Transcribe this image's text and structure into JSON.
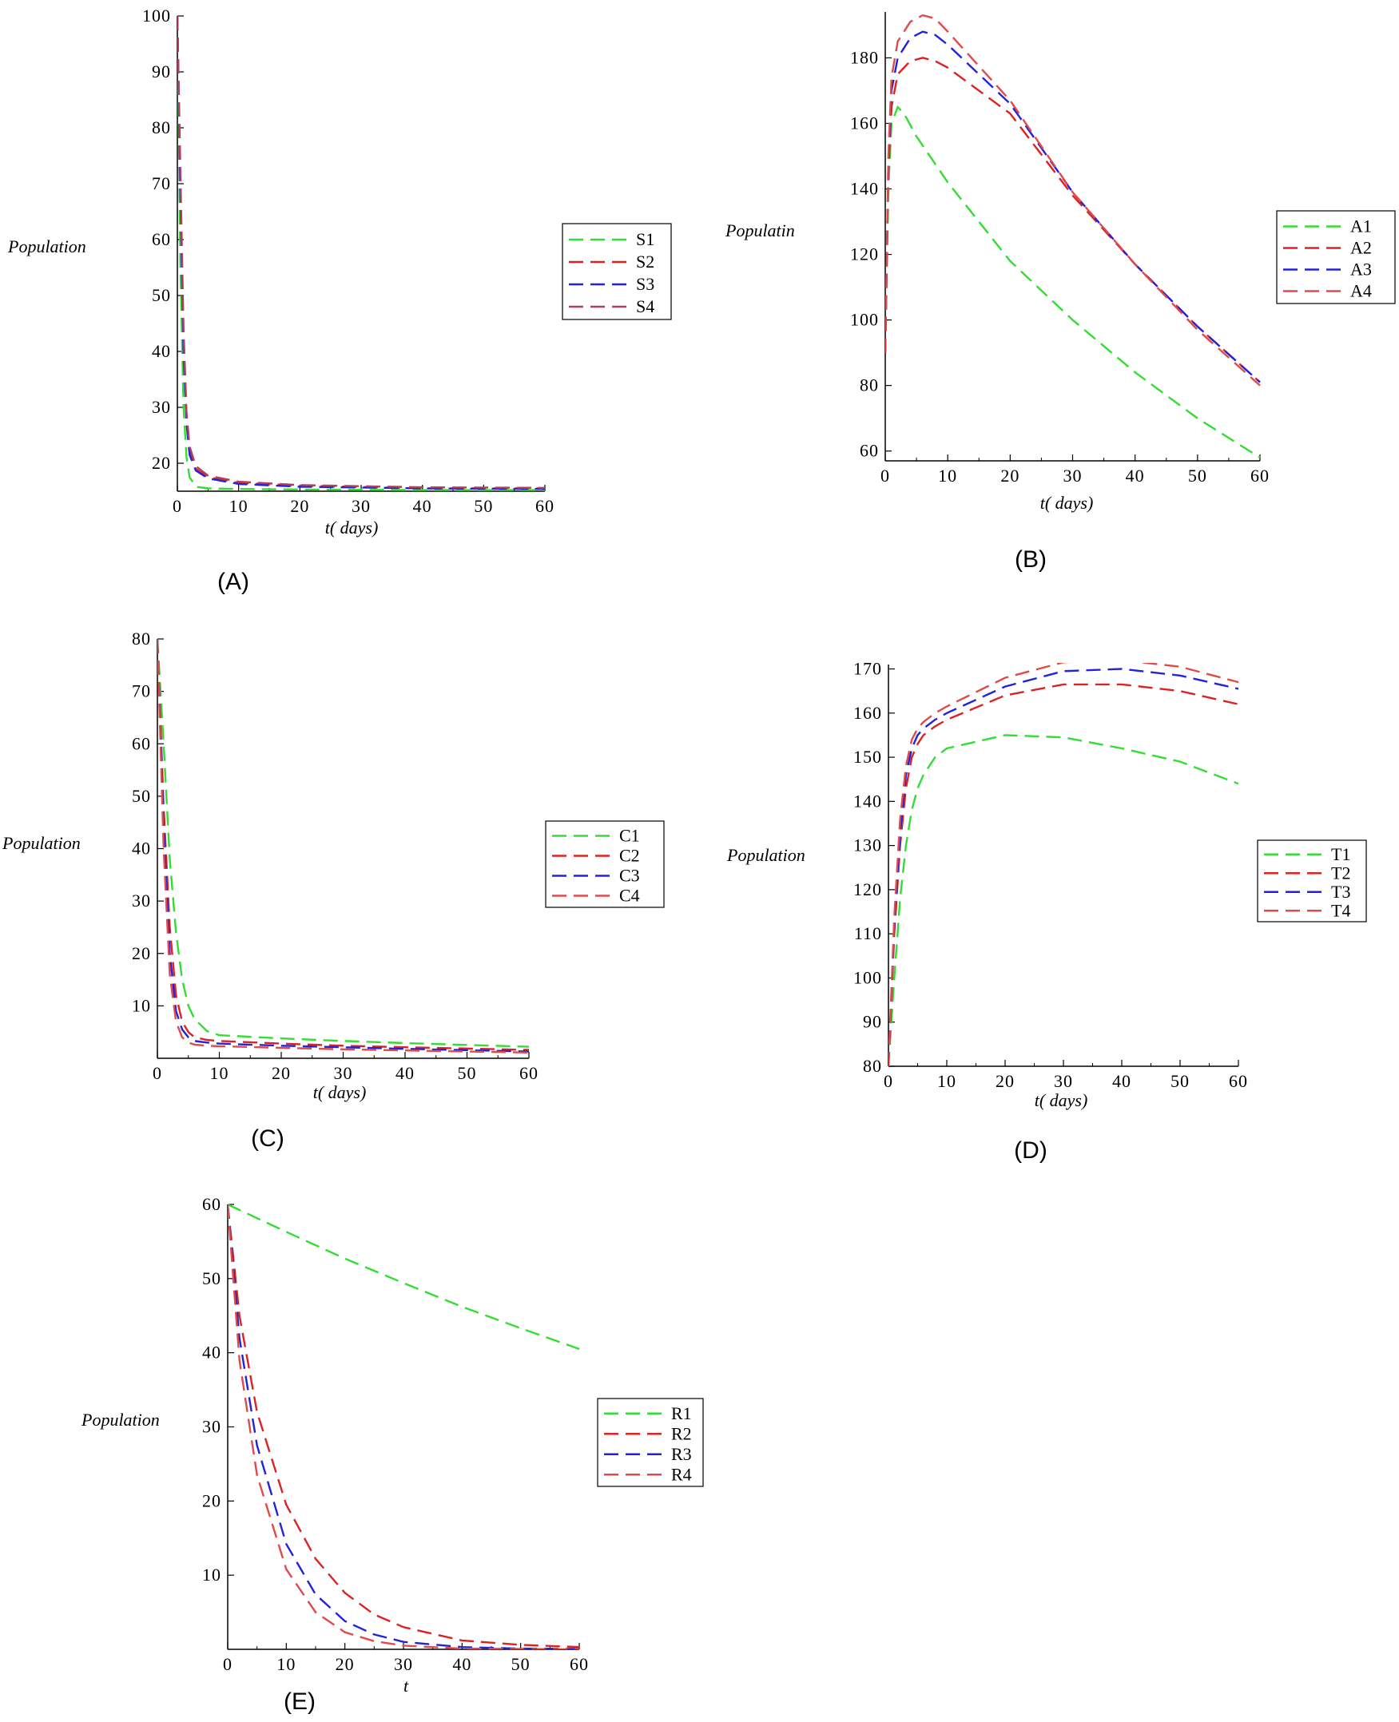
{
  "chart_data": [
    {
      "type": "line",
      "panel_label": "(A)",
      "xlabel": "t( days)",
      "ylabel": "Population",
      "xlim": [
        0,
        60
      ],
      "ylim": [
        15,
        100
      ],
      "x_ticks": [
        0,
        10,
        20,
        30,
        40,
        50,
        60
      ],
      "y_ticks": [
        20,
        30,
        40,
        50,
        60,
        70,
        80,
        90,
        100
      ],
      "legend": "right",
      "series": [
        {
          "name": "S1",
          "color": "#33dd33",
          "x": [
            0,
            0.5,
            1,
            1.5,
            2,
            3,
            5,
            10,
            20,
            40,
            60
          ],
          "y": [
            100,
            55,
            30,
            21,
            17.5,
            15.8,
            15.5,
            15.4,
            15.3,
            15.2,
            15.2
          ]
        },
        {
          "name": "S2",
          "color": "#dd2222",
          "x": [
            0,
            0.5,
            1,
            1.5,
            2,
            3,
            5,
            10,
            20,
            40,
            60
          ],
          "y": [
            100,
            70,
            42,
            28,
            22,
            19,
            17.5,
            16.5,
            16,
            15.5,
            15.5
          ]
        },
        {
          "name": "S3",
          "color": "#2222dd",
          "x": [
            0,
            0.5,
            1,
            1.5,
            2,
            3,
            5,
            10,
            20,
            40,
            60
          ],
          "y": [
            100,
            68,
            40,
            27,
            21.5,
            18.7,
            17.3,
            16.3,
            15.8,
            15.5,
            15.4
          ]
        },
        {
          "name": "S4",
          "color": "#b0405a",
          "x": [
            0,
            0.5,
            1,
            1.5,
            2,
            3,
            5,
            10,
            20,
            40,
            60
          ],
          "y": [
            100,
            72,
            44,
            29,
            23,
            19.5,
            17.8,
            16.7,
            16.1,
            15.7,
            15.6
          ]
        }
      ]
    },
    {
      "type": "line",
      "panel_label": "(B)",
      "xlabel": "t( days)",
      "ylabel": "Populatin",
      "xlim": [
        0,
        60
      ],
      "ylim": [
        57,
        194
      ],
      "x_ticks": [
        0,
        10,
        20,
        30,
        40,
        50,
        60
      ],
      "y_ticks": [
        60,
        80,
        100,
        120,
        140,
        160,
        180
      ],
      "legend": "right",
      "series": [
        {
          "name": "A1",
          "color": "#33dd33",
          "x": [
            0,
            0.5,
            1,
            2,
            3,
            5,
            10,
            20,
            30,
            40,
            50,
            60
          ],
          "y": [
            90,
            140,
            160,
            165,
            163,
            156,
            142,
            118,
            100,
            84,
            70,
            58
          ]
        },
        {
          "name": "A2",
          "color": "#dd2222",
          "x": [
            0,
            0.5,
            1,
            2,
            4,
            6,
            8,
            10,
            20,
            30,
            40,
            50,
            60
          ],
          "y": [
            90,
            145,
            165,
            175,
            179,
            180,
            179,
            177,
            163,
            138,
            117,
            98,
            81
          ]
        },
        {
          "name": "A3",
          "color": "#2222dd",
          "x": [
            0,
            0.5,
            1,
            2,
            4,
            6,
            8,
            10,
            20,
            30,
            40,
            50,
            60
          ],
          "y": [
            90,
            148,
            170,
            180,
            186,
            188,
            187,
            184,
            166,
            139,
            117,
            98,
            81
          ]
        },
        {
          "name": "A4",
          "color": "#e04a4a",
          "x": [
            0,
            0.5,
            1,
            2,
            4,
            6,
            8,
            10,
            20,
            30,
            40,
            50,
            60
          ],
          "y": [
            90,
            150,
            174,
            185,
            191,
            193,
            192,
            188,
            167,
            139,
            117,
            97,
            80
          ]
        }
      ]
    },
    {
      "type": "line",
      "panel_label": "(C)",
      "xlabel": "t( days)",
      "ylabel": "Population",
      "xlim": [
        0,
        60
      ],
      "ylim": [
        0,
        80
      ],
      "x_ticks": [
        0,
        10,
        20,
        30,
        40,
        50,
        60
      ],
      "y_ticks": [
        10,
        20,
        30,
        40,
        50,
        60,
        70,
        80
      ],
      "legend": "right",
      "series": [
        {
          "name": "C1",
          "color": "#33dd33",
          "x": [
            0,
            1,
            2,
            3,
            4,
            5,
            6,
            8,
            10,
            20,
            30,
            40,
            60
          ],
          "y": [
            80,
            60,
            38,
            24,
            15,
            10,
            7.5,
            5.2,
            4.4,
            3.8,
            3.3,
            2.9,
            2.2
          ]
        },
        {
          "name": "C2",
          "color": "#dd2222",
          "x": [
            0,
            1,
            2,
            3,
            4,
            5,
            6,
            8,
            10,
            20,
            30,
            40,
            60
          ],
          "y": [
            80,
            48,
            25,
            12,
            7,
            5,
            4,
            3.5,
            3.3,
            2.8,
            2.4,
            2.1,
            1.6
          ]
        },
        {
          "name": "C3",
          "color": "#2222dd",
          "x": [
            0,
            1,
            2,
            3,
            4,
            5,
            6,
            8,
            10,
            20,
            30,
            40,
            60
          ],
          "y": [
            80,
            44,
            20,
            9,
            5.5,
            4,
            3.3,
            3,
            2.8,
            2.4,
            2.1,
            1.8,
            1.3
          ]
        },
        {
          "name": "C4",
          "color": "#e04a4a",
          "x": [
            0,
            1,
            2,
            3,
            4,
            5,
            6,
            8,
            10,
            20,
            30,
            40,
            60
          ],
          "y": [
            80,
            40,
            16,
            7,
            4,
            3,
            2.6,
            2.4,
            2.3,
            2,
            1.7,
            1.5,
            1.1
          ]
        }
      ]
    },
    {
      "type": "line",
      "panel_label": "(D)",
      "xlabel": "t( days)",
      "ylabel": "Population",
      "xlim": [
        0,
        60
      ],
      "ylim": [
        80,
        171
      ],
      "x_ticks": [
        0,
        10,
        20,
        30,
        40,
        50,
        60
      ],
      "y_ticks": [
        80,
        90,
        100,
        110,
        120,
        130,
        140,
        150,
        160,
        170
      ],
      "legend": "right",
      "series": [
        {
          "name": "T1",
          "color": "#33dd33",
          "x": [
            0,
            1,
            2,
            3,
            4,
            5,
            6,
            8,
            10,
            20,
            30,
            40,
            50,
            60
          ],
          "y": [
            80,
            100,
            118,
            130,
            138,
            143,
            146,
            150,
            152,
            155,
            154.5,
            152,
            149,
            144
          ]
        },
        {
          "name": "T2",
          "color": "#dd2222",
          "x": [
            0,
            1,
            2,
            3,
            4,
            5,
            6,
            8,
            10,
            20,
            30,
            40,
            50,
            60
          ],
          "y": [
            80,
            110,
            130,
            143,
            150,
            153,
            155,
            157,
            158.5,
            164,
            166.5,
            166.5,
            165,
            162
          ]
        },
        {
          "name": "T3",
          "color": "#2222dd",
          "x": [
            0,
            1,
            2,
            3,
            4,
            5,
            6,
            8,
            10,
            20,
            30,
            40,
            50,
            60
          ],
          "y": [
            80,
            112,
            133,
            146,
            152,
            155,
            156.5,
            158.5,
            160,
            166,
            169.5,
            170,
            168.5,
            165.5
          ]
        },
        {
          "name": "T4",
          "color": "#e04a4a",
          "x": [
            0,
            1,
            2,
            3,
            4,
            5,
            6,
            8,
            10,
            20,
            30,
            40,
            50,
            60
          ],
          "y": [
            80,
            114,
            136,
            148,
            154,
            156.5,
            158,
            160,
            161.5,
            168,
            171.5,
            172,
            170.5,
            167
          ]
        }
      ]
    },
    {
      "type": "line",
      "panel_label": "(E)",
      "xlabel": "t",
      "ylabel": "Population",
      "xlim": [
        0,
        60
      ],
      "ylim": [
        0,
        60
      ],
      "x_ticks": [
        0,
        10,
        20,
        30,
        40,
        50,
        60
      ],
      "y_ticks": [
        10,
        20,
        30,
        40,
        50,
        60
      ],
      "legend": "right",
      "series": [
        {
          "name": "R1",
          "color": "#33dd33",
          "x": [
            0,
            10,
            20,
            30,
            40,
            50,
            60
          ],
          "y": [
            60,
            56.3,
            52.7,
            49.4,
            46.2,
            43.3,
            40.5
          ]
        },
        {
          "name": "R2",
          "color": "#dd2222",
          "x": [
            0,
            2,
            5,
            10,
            15,
            20,
            25,
            30,
            40,
            50,
            60
          ],
          "y": [
            60,
            45,
            32,
            19.5,
            12.2,
            7.6,
            4.7,
            3,
            1.2,
            0.6,
            0.3
          ]
        },
        {
          "name": "R3",
          "color": "#2222dd",
          "x": [
            0,
            2,
            5,
            10,
            15,
            20,
            25,
            30,
            40,
            50,
            60
          ],
          "y": [
            60,
            42,
            27.5,
            14.2,
            7.4,
            3.8,
            2,
            1,
            0.3,
            0.1,
            0.05
          ]
        },
        {
          "name": "R4",
          "color": "#e04a4a",
          "x": [
            0,
            2,
            5,
            10,
            15,
            20,
            25,
            30,
            40,
            50,
            60
          ],
          "y": [
            60,
            39,
            23.5,
            10.8,
            5,
            2.3,
            1.1,
            0.5,
            0.1,
            0.05,
            0
          ]
        }
      ]
    }
  ]
}
